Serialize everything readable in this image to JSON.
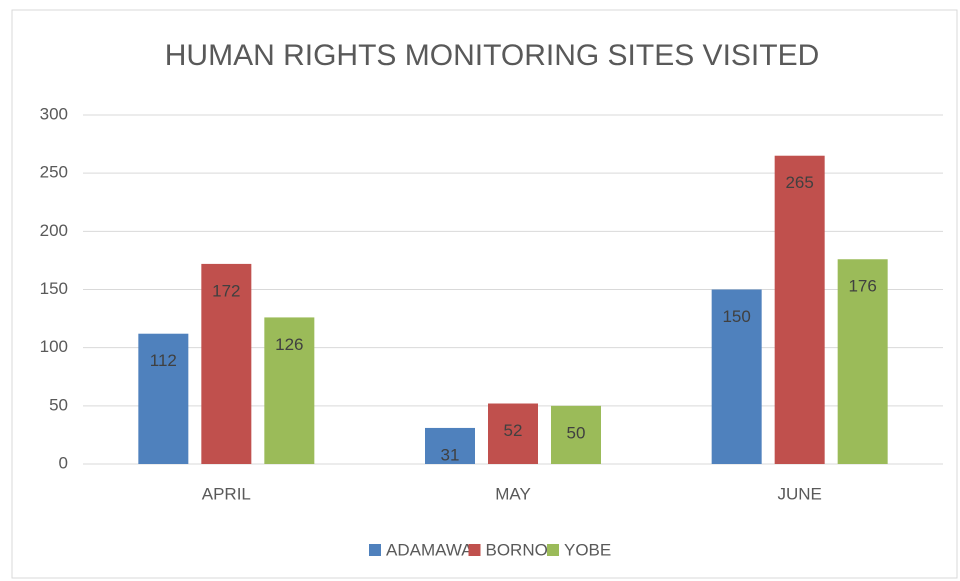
{
  "chart_data": {
    "type": "bar",
    "title": "HUMAN RIGHTS MONITORING SITES VISITED",
    "categories": [
      "APRIL",
      "MAY",
      "JUNE"
    ],
    "series": [
      {
        "name": "ADAMAWA",
        "color": "#4f81bd",
        "values": [
          112,
          31,
          150
        ]
      },
      {
        "name": "BORNO",
        "color": "#c0504d",
        "values": [
          172,
          52,
          265
        ]
      },
      {
        "name": "YOBE",
        "color": "#9bbb59",
        "values": [
          126,
          50,
          176
        ]
      }
    ],
    "ylim": [
      0,
      300
    ],
    "yticks": [
      0,
      50,
      100,
      150,
      200,
      250,
      300
    ],
    "grid": true,
    "legend": "bottom"
  }
}
